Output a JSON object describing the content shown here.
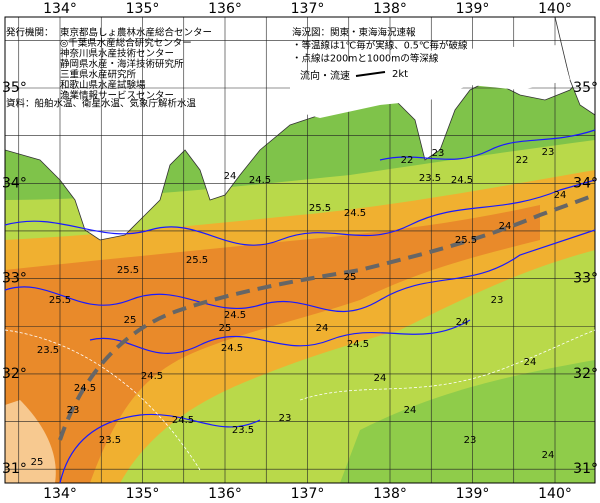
{
  "longitude_labels": [
    "134°",
    "135°",
    "136°",
    "137°",
    "138°",
    "139°",
    "140°"
  ],
  "latitude_labels": [
    "35°",
    "34°",
    "33°",
    "32°",
    "31°"
  ],
  "issuer": {
    "heading": "発行機関：",
    "organizations": [
      "東京都島しょ農林水産総合センター",
      "◎千葉県水産総合研究センター",
      "神奈川県水産技術センター",
      "静岡県水産・海洋技術研究所",
      "三重県水産研究所",
      "和歌山県水産試験場",
      "漁業情報サービスセンター"
    ]
  },
  "source": "資料：船舶水温、衛星水温、気象庁解析水温",
  "notes": {
    "title": "海況図：関東・東海海況速報",
    "lines": [
      "・等温線は1℃毎が実線、0.5℃毎が破線",
      "・点線は200mと1000mの等深線"
    ],
    "current_label": "流向・流速",
    "current_scale": "2kt"
  },
  "contour_labels": [
    "22",
    "23",
    "23.5",
    "24.5",
    "22",
    "23",
    "24.5",
    "24",
    "25.5",
    "25.5",
    "24.5",
    "25.5",
    "25",
    "25.5",
    "25.5",
    "24",
    "25",
    "24",
    "24.5",
    "24.5",
    "24.5",
    "24.5",
    "23.5",
    "24.5",
    "24",
    "23",
    "24",
    "23",
    "24",
    "25",
    "23.5",
    "23",
    "23.5",
    "24",
    "24",
    "24.5",
    "25",
    "24",
    "23"
  ]
}
